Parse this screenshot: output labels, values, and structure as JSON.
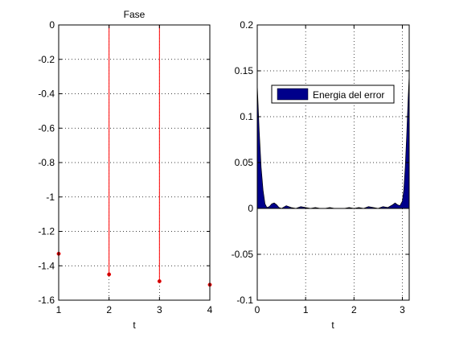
{
  "figure": {
    "background": "#ffffff",
    "axes_color": "#000000",
    "grid_color": "#000000"
  },
  "chart_data": [
    {
      "type": "stem",
      "title": "Fase",
      "xlabel": "t",
      "ylabel": "",
      "xlim": [
        1,
        4
      ],
      "ylim": [
        -1.6,
        0
      ],
      "grid": true,
      "xticks": [
        1,
        2,
        3,
        4
      ],
      "xtick_labels": [
        "1",
        "2",
        "3",
        "4"
      ],
      "yticks": [
        0,
        -0.2,
        -0.4,
        -0.6,
        -0.8,
        -1,
        -1.2,
        -1.4,
        -1.6
      ],
      "ytick_labels": [
        "0",
        "-0.2",
        "-0.4",
        "-0.6",
        "-0.8",
        "-1",
        "-1.2",
        "-1.4",
        "-1.6"
      ],
      "series": [
        {
          "color": "#ff0000",
          "marker_color": "#cc0000",
          "x": [
            1,
            2,
            3,
            4
          ],
          "y": [
            -1.33,
            -1.45,
            -1.49,
            -1.51
          ]
        }
      ]
    },
    {
      "type": "area",
      "title": "",
      "xlabel": "t",
      "ylabel": "",
      "xlim": [
        0,
        3.1416
      ],
      "ylim": [
        -0.1,
        0.2
      ],
      "grid": true,
      "xticks": [
        0,
        1,
        2,
        3
      ],
      "xtick_labels": [
        "0",
        "1",
        "2",
        "3"
      ],
      "yticks": [
        0.2,
        0.15,
        0.1,
        0.05,
        0,
        -0.05,
        -0.1
      ],
      "ytick_labels": [
        "0.2",
        "0.15",
        "0.1",
        "0.05",
        "0",
        "-0.05",
        "-0.1"
      ],
      "legend": {
        "entries": [
          "Energia del error"
        ],
        "placement": "upper-right"
      },
      "series": [
        {
          "name": "Energia del error",
          "color": "#00008b",
          "edge_color": "#000000",
          "x": [
            0,
            0.04,
            0.08,
            0.12,
            0.16,
            0.2,
            0.25,
            0.3,
            0.35,
            0.4,
            0.45,
            0.5,
            0.6,
            0.7,
            0.8,
            0.9,
            1.0,
            1.1,
            1.2,
            1.3,
            1.4,
            1.5,
            1.6,
            1.7,
            1.8,
            1.9,
            2.0,
            2.1,
            2.2,
            2.3,
            2.4,
            2.5,
            2.6,
            2.7,
            2.8,
            2.85,
            2.9,
            2.95,
            3.0,
            3.03,
            3.06,
            3.09,
            3.12,
            3.1416
          ],
          "y": [
            0.135,
            0.085,
            0.045,
            0.02,
            0.005,
            0.001,
            0.002,
            0.005,
            0.006,
            0.004,
            0.001,
            0.0,
            0.003,
            0.001,
            0.0,
            0.002,
            0.001,
            0.0,
            0.001,
            0.0,
            0.0,
            0.001,
            0.0,
            0.0,
            0.0,
            0.001,
            0.0,
            0.001,
            0.0,
            0.002,
            0.001,
            0.0,
            0.002,
            0.001,
            0.004,
            0.006,
            0.004,
            0.003,
            0.008,
            0.02,
            0.045,
            0.08,
            0.12,
            0.145
          ]
        }
      ]
    }
  ]
}
